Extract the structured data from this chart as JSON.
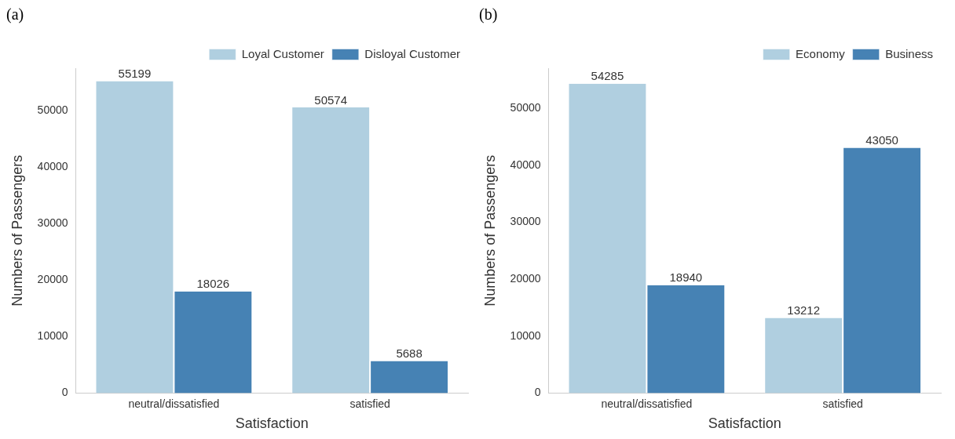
{
  "chart_data": [
    {
      "type": "bar",
      "title": "(a)",
      "xlabel": "Satisfaction",
      "ylabel": "Numbers of Passengers",
      "categories": [
        "neutral/dissatisfied",
        "satisfied"
      ],
      "series": [
        {
          "name": "Loyal Customer",
          "color": "#b0cfe0",
          "values": [
            55199,
            50574
          ]
        },
        {
          "name": "Disloyal Customer",
          "color": "#4682b4",
          "values": [
            18026,
            5688
          ]
        }
      ],
      "ylim": [
        0,
        57500
      ],
      "yticks": [
        0,
        10000,
        20000,
        30000,
        40000,
        50000
      ],
      "grid": false,
      "legend": "top right",
      "data_labels": true
    },
    {
      "type": "bar",
      "title": "(b)",
      "xlabel": "Satisfaction",
      "ylabel": "Numbers of Passengers",
      "categories": [
        "neutral/dissatisfied",
        "satisfied"
      ],
      "series": [
        {
          "name": "Economy",
          "color": "#b0cfe0",
          "values": [
            54285,
            13212
          ]
        },
        {
          "name": "Business",
          "color": "#4682b4",
          "values": [
            18940,
            43050
          ]
        }
      ],
      "ylim": [
        0,
        57000
      ],
      "yticks": [
        0,
        10000,
        20000,
        30000,
        40000,
        50000
      ],
      "grid": false,
      "legend": "top right",
      "data_labels": true
    }
  ]
}
